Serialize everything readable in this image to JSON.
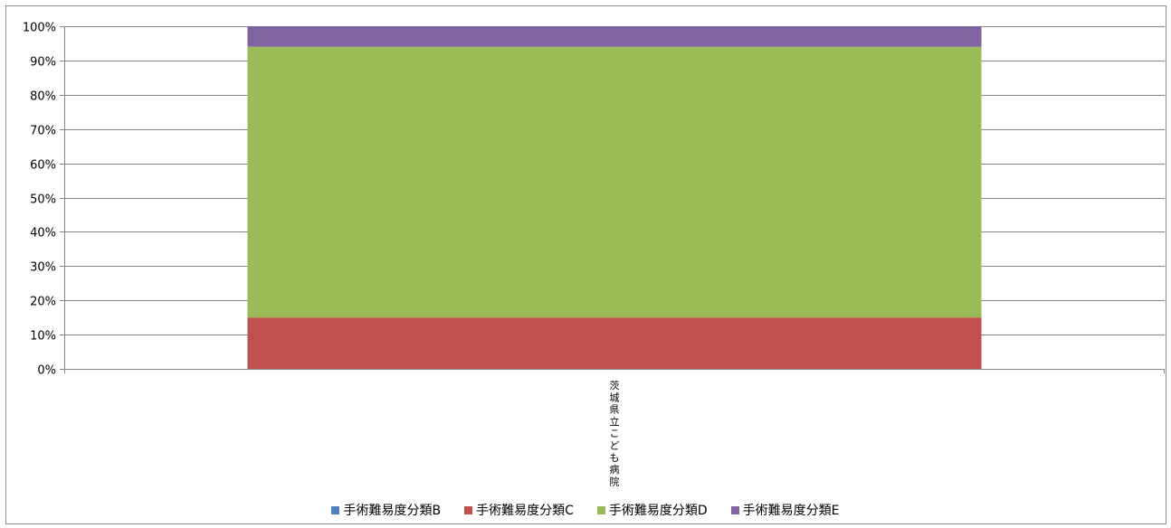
{
  "chart_data": {
    "type": "bar",
    "stacked": true,
    "percent": true,
    "categories": [
      "茨城県立こども病院"
    ],
    "series": [
      {
        "name": "手術難易度分類B",
        "color": "#4f81bd",
        "values": [
          0
        ]
      },
      {
        "name": "手術難易度分類C",
        "color": "#c0504d",
        "values": [
          15
        ]
      },
      {
        "name": "手術難易度分類D",
        "color": "#9bbb59",
        "values": [
          79
        ]
      },
      {
        "name": "手術難易度分類E",
        "color": "#8064a2",
        "values": [
          6
        ]
      }
    ],
    "ylim": [
      0,
      100
    ],
    "yticks": [
      "0%",
      "10%",
      "20%",
      "30%",
      "40%",
      "50%",
      "60%",
      "70%",
      "80%",
      "90%",
      "100%"
    ],
    "grid": true,
    "legend_position": "bottom"
  }
}
